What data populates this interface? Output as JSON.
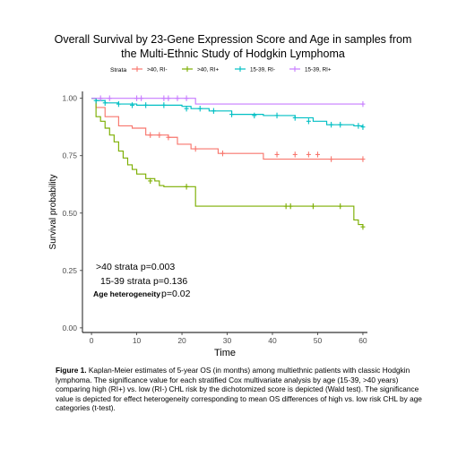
{
  "title_line1": "Overall Survival by 23-Gene Expression Score and Age in samples from",
  "title_line2": "the Multi-Ethnic Study of Hodgkin Lymphoma",
  "legend_title": "Strata",
  "annotations": {
    "p40": ">40 strata p=0.003",
    "p1539": "15-39 strata p=0.136",
    "age_label": "Age heterogeneity",
    "age_value": "p=0.02"
  },
  "caption": {
    "label": "Figure 1.",
    "text": " Kaplan-Meier estimates of 5-year OS (in months) among multiethnic patients with classic Hodgkin lymphoma. The significance value for each stratified Cox multivariate analysis by age (15-39, >40 years) comparing high (RI+) vs. low (RI-) CHL risk by the dichotomized score is depicted (Wald test). The significance value is depicted for effect heterogeneity corresponding to mean OS differences of high vs. low risk CHL by age categories (t-test)."
  },
  "chart_data": {
    "type": "line",
    "step": true,
    "xlabel": "Time",
    "ylabel": "Survival probability",
    "xlim": [
      -2,
      61
    ],
    "ylim": [
      -0.02,
      1.03
    ],
    "xticks": [
      0,
      10,
      20,
      30,
      40,
      50,
      60
    ],
    "yticks": [
      0.0,
      0.25,
      0.5,
      0.75,
      1.0
    ],
    "ytick_labels": [
      "0.00",
      "0.25",
      "0.50",
      "0.75",
      "1.00"
    ],
    "legend_position": "top",
    "series": [
      {
        "name": ">40, RI-",
        "color": "#f8766d",
        "x": [
          0,
          1,
          3,
          6,
          9,
          12,
          17,
          19,
          22,
          28,
          38,
          60
        ],
        "y": [
          1.0,
          0.96,
          0.92,
          0.88,
          0.87,
          0.84,
          0.83,
          0.8,
          0.78,
          0.76,
          0.735,
          0.735
        ],
        "censor_x": [
          13,
          15,
          17,
          23,
          29,
          41,
          45,
          48,
          50,
          53,
          60
        ],
        "censor_y": [
          0.84,
          0.84,
          0.83,
          0.78,
          0.76,
          0.755,
          0.755,
          0.755,
          0.755,
          0.735,
          0.735
        ]
      },
      {
        "name": ">40, RI+",
        "color": "#7cae00",
        "x": [
          0,
          1,
          2,
          3,
          4,
          5,
          6,
          7,
          8,
          9,
          10,
          12,
          14,
          15,
          16,
          23,
          58,
          59,
          60
        ],
        "y": [
          1.0,
          0.92,
          0.9,
          0.87,
          0.84,
          0.81,
          0.77,
          0.74,
          0.71,
          0.69,
          0.67,
          0.65,
          0.64,
          0.62,
          0.615,
          0.53,
          0.47,
          0.45,
          0.44
        ],
        "censor_x": [
          13,
          21,
          43,
          44,
          49,
          55,
          60
        ],
        "censor_y": [
          0.64,
          0.615,
          0.53,
          0.53,
          0.53,
          0.53,
          0.44
        ]
      },
      {
        "name": "15-39, RI-",
        "color": "#00bfc4",
        "x": [
          0,
          1,
          3,
          6,
          10,
          20,
          22,
          26,
          31,
          38,
          45,
          49,
          52,
          58,
          60
        ],
        "y": [
          1.0,
          0.99,
          0.98,
          0.975,
          0.97,
          0.965,
          0.955,
          0.945,
          0.93,
          0.925,
          0.915,
          0.9,
          0.885,
          0.88,
          0.875
        ],
        "censor_x": [
          1,
          3,
          6,
          9,
          12,
          16,
          21,
          24,
          27,
          31,
          36,
          41,
          45,
          48,
          53,
          55,
          59,
          60
        ],
        "censor_y": [
          0.99,
          0.98,
          0.975,
          0.97,
          0.97,
          0.97,
          0.955,
          0.955,
          0.945,
          0.93,
          0.925,
          0.925,
          0.915,
          0.9,
          0.885,
          0.885,
          0.88,
          0.875
        ]
      },
      {
        "name": "15-39, RI+",
        "color": "#c77cff",
        "x": [
          0,
          23,
          60
        ],
        "y": [
          1.0,
          0.975,
          0.975
        ],
        "censor_x": [
          2,
          4,
          10,
          11,
          16,
          17,
          19,
          21,
          60
        ],
        "censor_y": [
          1.0,
          1.0,
          1.0,
          1.0,
          1.0,
          1.0,
          1.0,
          1.0,
          0.975
        ]
      }
    ]
  }
}
